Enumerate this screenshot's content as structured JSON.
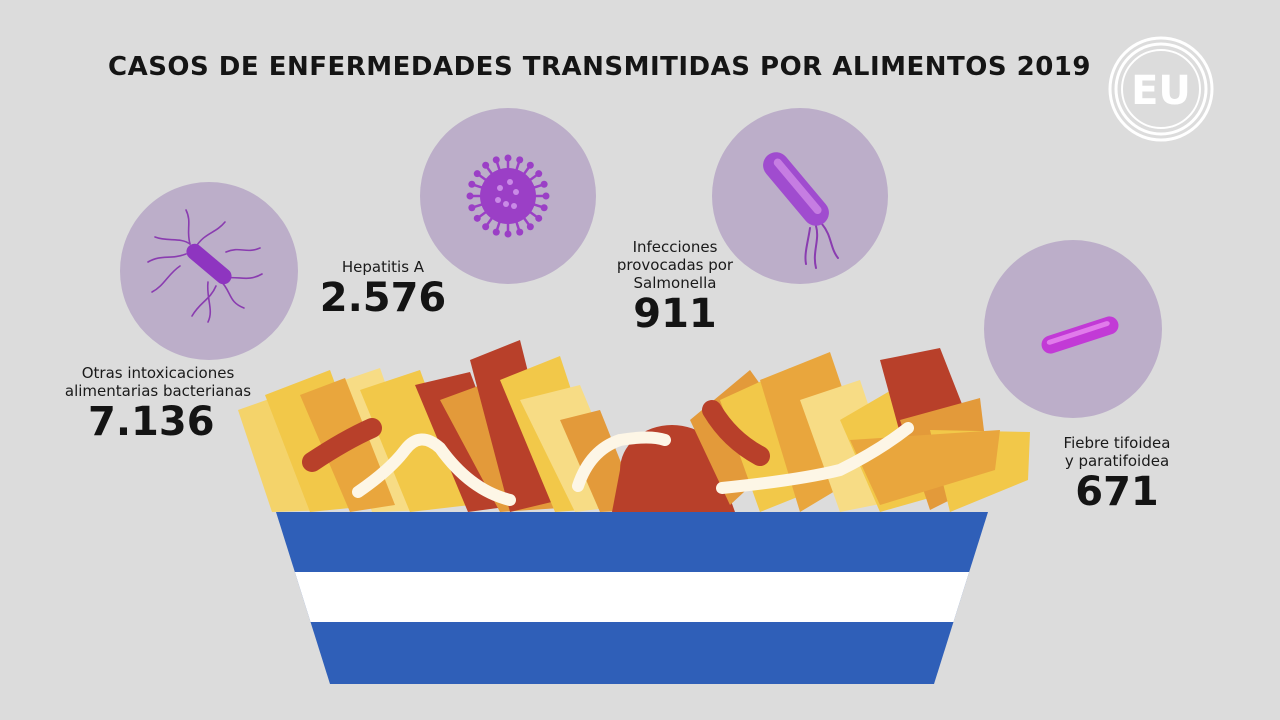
{
  "title": "CASOS DE ENFERMEDADES TRANSMITIDAS POR ALIMENTOS 2019",
  "logo": {
    "text": "EU",
    "icon": "eu-logo-icon"
  },
  "stats": [
    {
      "label_lines": [
        "Otras intoxicaciones",
        "alimentarias bacterianas"
      ],
      "value": "7.136",
      "icon": "bacteria-flagella-icon"
    },
    {
      "label_lines": [
        "Hepatitis A"
      ],
      "value": "2.576",
      "icon": "virus-icon"
    },
    {
      "label_lines": [
        "Infecciones",
        "provocadas por",
        "Salmonella"
      ],
      "value": "911",
      "icon": "salmonella-icon"
    },
    {
      "label_lines": [
        "Fiebre tifoidea",
        "y paratifoidea"
      ],
      "value": "671",
      "icon": "bacillus-icon"
    }
  ],
  "colors": {
    "background": "#dcdcdc",
    "germ_circle": "#bcaec9",
    "germ_purple": "#9b3fc6",
    "bowl_blue": "#2f5fb8",
    "bowl_white": "#ffffff",
    "fries_yellow": "#f2c849",
    "fries_orange": "#e39a3a",
    "sausage_red": "#b8402a"
  }
}
